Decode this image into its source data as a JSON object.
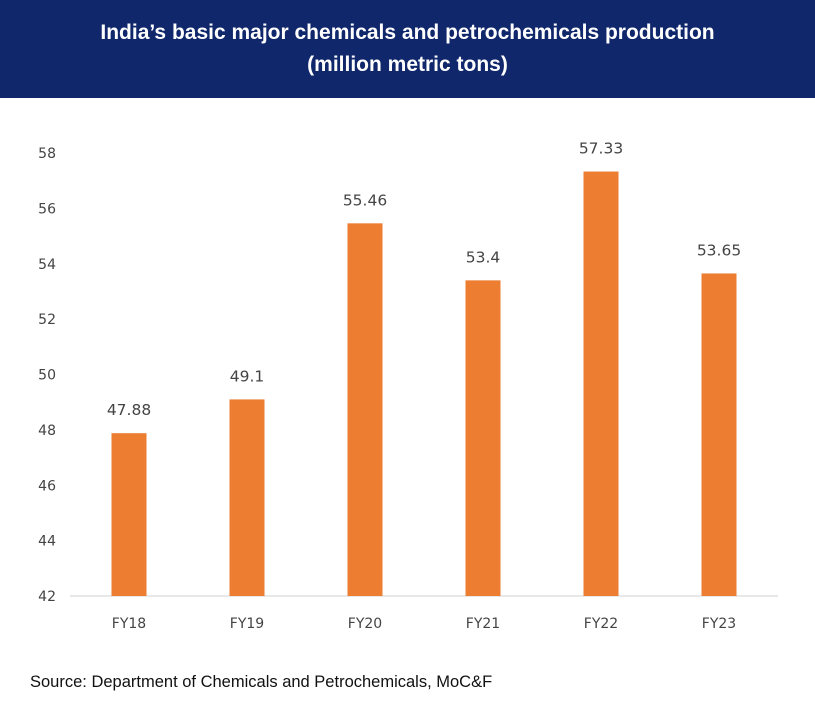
{
  "header": {
    "title_line1": "India’s basic major chemicals and petrochemicals production",
    "title_line2": "(million metric tons)"
  },
  "source": "Source: Department of Chemicals and Petrochemicals, MoC&F",
  "colors": {
    "header_bg": "#10276b",
    "bar": "#ed7d31",
    "axis": "#d9d9d9",
    "label": "#444444"
  },
  "chart_data": {
    "type": "bar",
    "title": "India’s basic major chemicals and petrochemicals production (million metric tons)",
    "categories": [
      "FY18",
      "FY19",
      "FY20",
      "FY21",
      "FY22",
      "FY23"
    ],
    "series": [
      {
        "values": [
          47.88,
          49.1,
          55.46,
          53.4,
          57.33,
          53.65
        ]
      }
    ],
    "data_labels": [
      "47.88",
      "49.1",
      "55.46",
      "53.4",
      "57.33",
      "53.65"
    ],
    "ylim": [
      42,
      58
    ],
    "yticks": [
      42,
      44,
      46,
      48,
      50,
      52,
      54,
      56,
      58
    ],
    "grid": false,
    "xlabel": "",
    "ylabel": ""
  }
}
